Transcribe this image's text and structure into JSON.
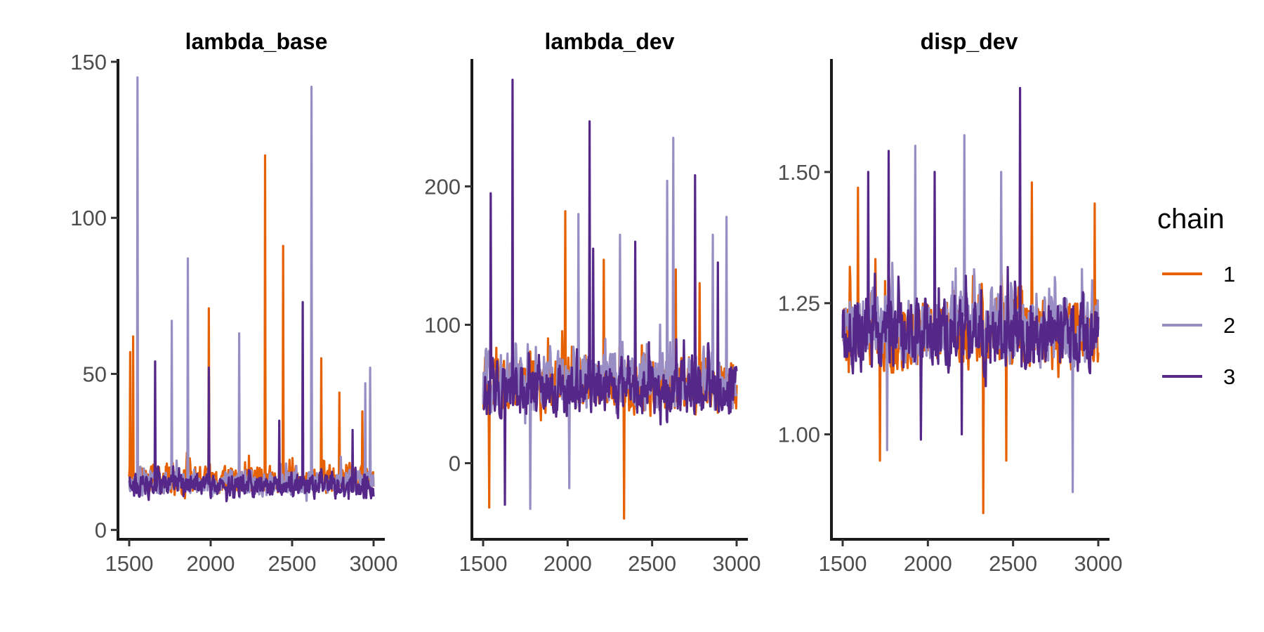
{
  "chart_data": [
    {
      "type": "line",
      "title": "lambda_base",
      "xlabel": "",
      "ylabel": "",
      "xlim": [
        1500,
        3000
      ],
      "ylim": [
        -3,
        150
      ],
      "xticks": [
        1500,
        2000,
        2500,
        3000
      ],
      "yticks": [
        0,
        50,
        100,
        150
      ],
      "series": [
        {
          "name": "1",
          "color": "#E66101",
          "baseline": 16,
          "spread": 6,
          "spikes": [
            [
              1505,
              57
            ],
            [
              1525,
              62
            ],
            [
              1990,
              71
            ],
            [
              2335,
              120
            ],
            [
              2445,
              91
            ],
            [
              2680,
              55
            ],
            [
              2790,
              44
            ],
            [
              2930,
              38
            ]
          ]
        },
        {
          "name": "2",
          "color": "#998EC3",
          "baseline": 15,
          "spread": 5,
          "spikes": [
            [
              1550,
              145
            ],
            [
              1760,
              67
            ],
            [
              1860,
              87
            ],
            [
              2175,
              63
            ],
            [
              2620,
              142
            ],
            [
              2950,
              47
            ],
            [
              2980,
              52
            ]
          ]
        },
        {
          "name": "3",
          "color": "#542788",
          "baseline": 14,
          "spread": 5,
          "spikes": [
            [
              1660,
              54
            ],
            [
              1990,
              52
            ],
            [
              2565,
              73
            ],
            [
              2420,
              35
            ],
            [
              2870,
              32
            ]
          ]
        }
      ]
    },
    {
      "type": "line",
      "title": "lambda_dev",
      "xlabel": "",
      "ylabel": "",
      "xlim": [
        1500,
        3000
      ],
      "ylim": [
        -55,
        290
      ],
      "xticks": [
        1500,
        2000,
        2500,
        3000
      ],
      "yticks": [
        0,
        100,
        200
      ],
      "series": [
        {
          "name": "1",
          "color": "#E66101",
          "baseline": 55,
          "spread": 26,
          "spikes": [
            [
              1535,
              -32
            ],
            [
              1985,
              182
            ],
            [
              2335,
              -40
            ],
            [
              2215,
              147
            ],
            [
              2640,
              140
            ],
            [
              2780,
              130
            ]
          ]
        },
        {
          "name": "2",
          "color": "#998EC3",
          "baseline": 58,
          "spread": 28,
          "spikes": [
            [
              1780,
              -33
            ],
            [
              2065,
              180
            ],
            [
              2310,
              165
            ],
            [
              2625,
              235
            ],
            [
              2590,
              204
            ],
            [
              2860,
              165
            ],
            [
              2940,
              178
            ],
            [
              2010,
              -18
            ]
          ]
        },
        {
          "name": "3",
          "color": "#542788",
          "baseline": 52,
          "spread": 25,
          "spikes": [
            [
              1545,
              195
            ],
            [
              1675,
              277
            ],
            [
              2130,
              247
            ],
            [
              2150,
              155
            ],
            [
              2755,
              208
            ],
            [
              1630,
              -30
            ],
            [
              2400,
              160
            ],
            [
              2890,
              145
            ]
          ]
        }
      ]
    },
    {
      "type": "line",
      "title": "disp_dev",
      "xlabel": "",
      "ylabel": "",
      "xlim": [
        1500,
        3000
      ],
      "ylim": [
        0.8,
        1.71
      ],
      "xticks": [
        1500,
        2000,
        2500,
        3000
      ],
      "yticks": [
        1.0,
        1.25,
        1.5
      ],
      "ytick_labels": [
        "1.00",
        "1.25",
        "1.50"
      ],
      "series": [
        {
          "name": "1",
          "color": "#E66101",
          "baseline": 1.19,
          "spread": 0.09,
          "spikes": [
            [
              2325,
              0.85
            ],
            [
              1590,
              1.47
            ],
            [
              2610,
              1.48
            ],
            [
              2980,
              1.44
            ],
            [
              1720,
              0.95
            ],
            [
              2460,
              0.95
            ]
          ]
        },
        {
          "name": "2",
          "color": "#998EC3",
          "baseline": 1.2,
          "spread": 0.09,
          "spikes": [
            [
              1925,
              1.55
            ],
            [
              2215,
              1.57
            ],
            [
              2850,
              0.89
            ],
            [
              2430,
              1.5
            ],
            [
              1760,
              0.97
            ]
          ]
        },
        {
          "name": "3",
          "color": "#542788",
          "baseline": 1.19,
          "spread": 0.09,
          "spikes": [
            [
              2540,
              1.66
            ],
            [
              1770,
              1.54
            ],
            [
              1650,
              1.5
            ],
            [
              2040,
              1.5
            ],
            [
              1960,
              0.99
            ],
            [
              2200,
              1.0
            ]
          ]
        }
      ]
    }
  ],
  "legend": {
    "title": "chain",
    "position": "right",
    "items": [
      {
        "label": "1",
        "color": "#E66101"
      },
      {
        "label": "2",
        "color": "#998EC3"
      },
      {
        "label": "3",
        "color": "#542788"
      }
    ]
  }
}
